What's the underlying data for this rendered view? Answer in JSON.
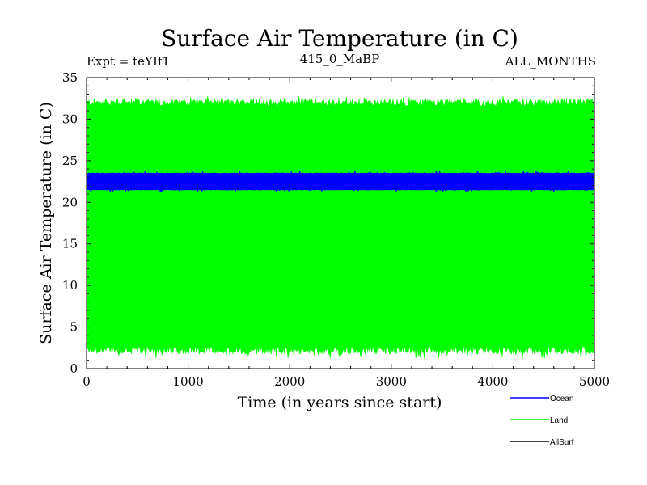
{
  "chart_data": {
    "type": "line",
    "title": "Surface Air Temperature (in C)",
    "subtitle_left": "Expt = teYIf1",
    "subtitle_center": "415_0_MaBP",
    "subtitle_right": "ALL_MONTHS",
    "xlabel": "Time (in years since start)",
    "ylabel": "Surface Air Temperature (in C)",
    "xlim": [
      0,
      5000
    ],
    "ylim": [
      0,
      35
    ],
    "xticks": [
      0,
      1000,
      2000,
      3000,
      4000,
      5000
    ],
    "yticks": [
      0,
      5,
      10,
      15,
      20,
      25,
      30,
      35
    ],
    "xtick_labels": [
      "0",
      "1000",
      "2000",
      "3000",
      "4000",
      "5000"
    ],
    "ytick_labels": [
      "0",
      "5",
      "10",
      "15",
      "20",
      "25",
      "30",
      "35"
    ],
    "legend_position": "bottom-right",
    "series": [
      {
        "name": "Ocean",
        "color": "#0000ff",
        "min": 21.5,
        "max": 23.5,
        "peak_low": 21.2,
        "peak_high": 23.8
      },
      {
        "name": "Land",
        "color": "#00ff00",
        "min": 2.2,
        "max": 32.0,
        "peak_low": 1.2,
        "peak_high": 32.8
      },
      {
        "name": "AllSurf",
        "color": "#000000"
      }
    ]
  }
}
